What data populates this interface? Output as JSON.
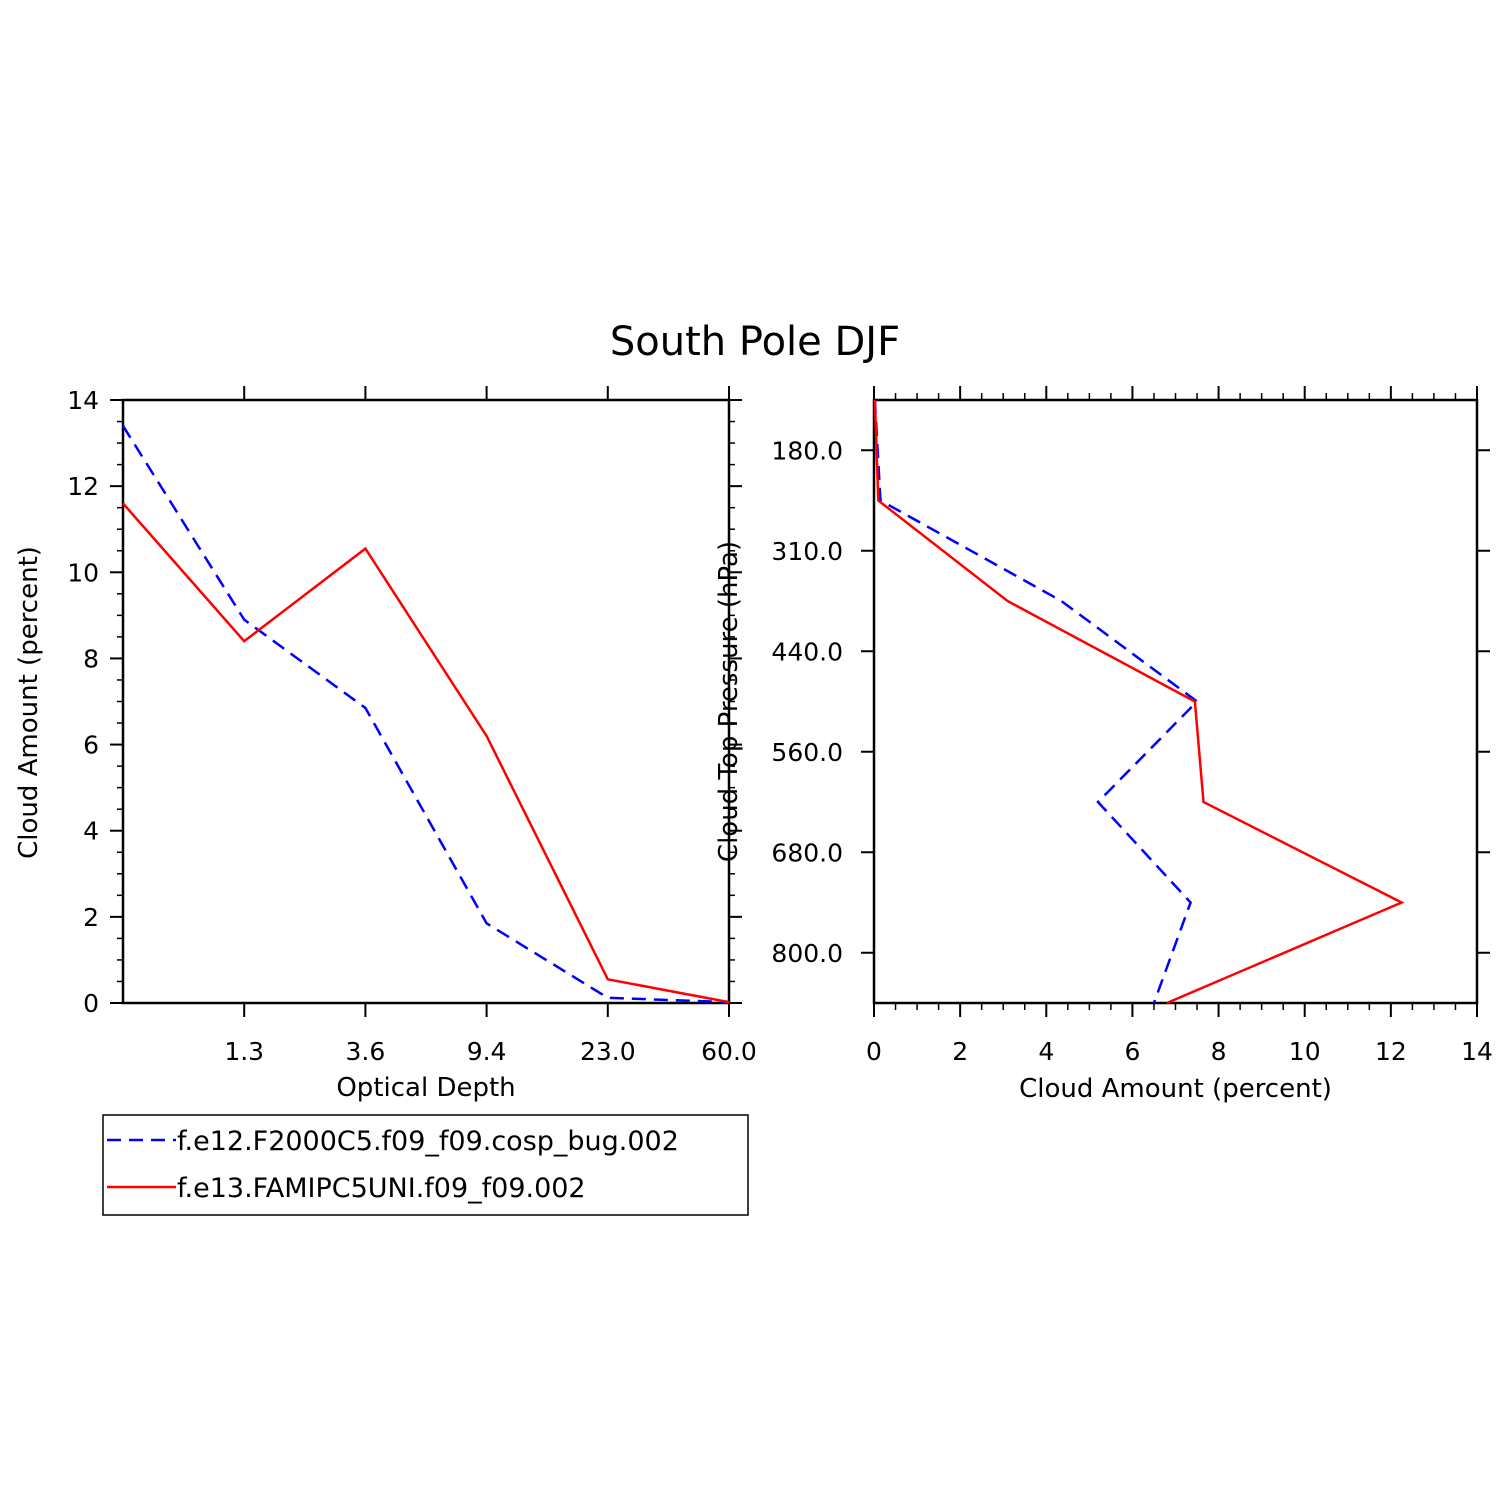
{
  "figure_title": "South Pole DJF",
  "chart_data": [
    {
      "type": "line",
      "panel": "left",
      "xlabel": "Optical Depth",
      "ylabel": "Cloud Amount (percent)",
      "x_tick_labels": [
        "1.3",
        "3.6",
        "9.4",
        "23.0",
        "60.0"
      ],
      "x_bins": [
        0,
        1,
        2,
        3,
        4,
        5
      ],
      "ylim": [
        0,
        14
      ],
      "y_major_ticks": [
        0,
        2,
        4,
        6,
        8,
        10,
        12,
        14
      ],
      "y_minor_step": 0.5,
      "series": [
        {
          "name": "f.e12.F2000C5.f09_f09.cosp_bug.002",
          "color": "#0000ff",
          "dash": "dashed",
          "values": [
            13.4,
            8.9,
            6.85,
            1.85,
            0.12,
            0.02
          ]
        },
        {
          "name": "f.e13.FAMIPC5UNI.f09_f09.002",
          "color": "#ff0000",
          "dash": "solid",
          "values": [
            11.6,
            8.4,
            10.55,
            6.2,
            0.55,
            0.02
          ]
        }
      ]
    },
    {
      "type": "line",
      "panel": "right",
      "xlabel": "Cloud Amount (percent)",
      "ylabel": "Cloud Top Pressure (hPa)",
      "xlim": [
        0,
        14
      ],
      "x_major_ticks": [
        0,
        2,
        4,
        6,
        8,
        10,
        12,
        14
      ],
      "x_minor_step": 0.5,
      "y_tick_labels": [
        "180.0",
        "310.0",
        "440.0",
        "560.0",
        "680.0",
        "800.0"
      ],
      "y_levels": [
        0,
        1,
        2,
        3,
        4,
        5,
        6
      ],
      "series": [
        {
          "name": "f.e12.F2000C5.f09_f09.cosp_bug.002",
          "color": "#0000ff",
          "dash": "dashed",
          "values": [
            0.02,
            0.15,
            4.35,
            7.5,
            5.2,
            7.35,
            6.5
          ]
        },
        {
          "name": "f.e13.FAMIPC5UNI.f09_f09.002",
          "color": "#ff0000",
          "dash": "solid",
          "values": [
            0.02,
            0.1,
            3.1,
            7.45,
            7.65,
            12.25,
            6.8
          ]
        }
      ]
    }
  ],
  "legend": {
    "placement": "below-left",
    "entries": [
      {
        "label": "f.e12.F2000C5.f09_f09.cosp_bug.002",
        "color": "#0000ff",
        "dash": "dashed"
      },
      {
        "label": "f.e13.FAMIPC5UNI.f09_f09.002",
        "color": "#ff0000",
        "dash": "solid"
      }
    ]
  }
}
